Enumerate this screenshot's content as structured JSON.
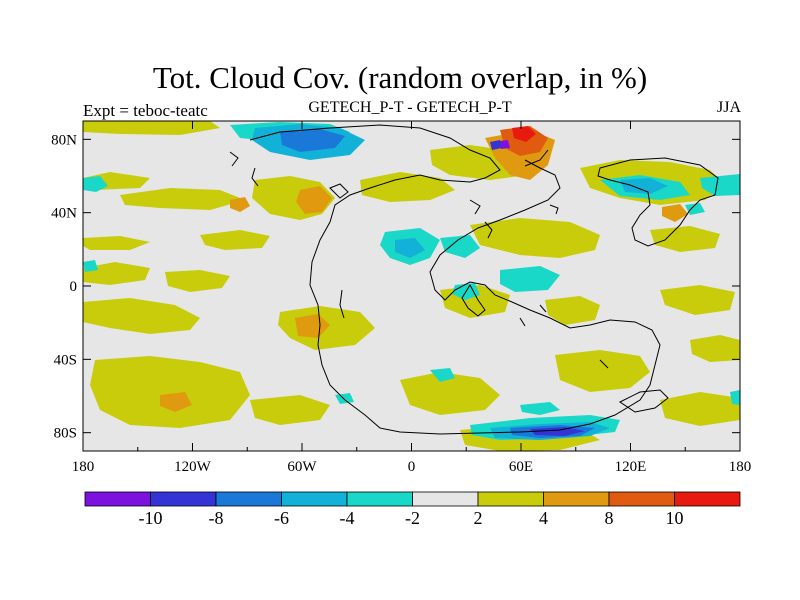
{
  "title": "Tot. Cloud Cov. (random overlap, in %)",
  "left_label": "Expt = teboc-teatc",
  "center_label": "GETECH_P-T - GETECH_P-T",
  "right_label": "JJA",
  "x_ticks": [
    "180",
    "120W",
    "60W",
    "0",
    "60E",
    "120E",
    "180"
  ],
  "y_ticks": [
    "80N",
    "40N",
    "0",
    "40S",
    "80S"
  ],
  "colorbar": {
    "colors": [
      "#7b12e0",
      "#3434d6",
      "#1a78d8",
      "#12b2d8",
      "#1ad8c8",
      "#e6e6e6",
      "#c8cc0a",
      "#e09a10",
      "#e05a10",
      "#e81a10"
    ],
    "labels": [
      "-10",
      "-8",
      "-6",
      "-4",
      "-2",
      "2",
      "4",
      "8",
      "10"
    ]
  },
  "map_colors": {
    "background": "#e6e6e6",
    "yellow": "#c8cc0a",
    "orange": "#e09a10",
    "red_orange": "#e05a10",
    "red": "#e81a10",
    "cyan": "#1ad8c8",
    "light_blue": "#12b2d8",
    "blue": "#1a78d8",
    "dark_blue": "#3434d6",
    "purple": "#7b12e0"
  }
}
